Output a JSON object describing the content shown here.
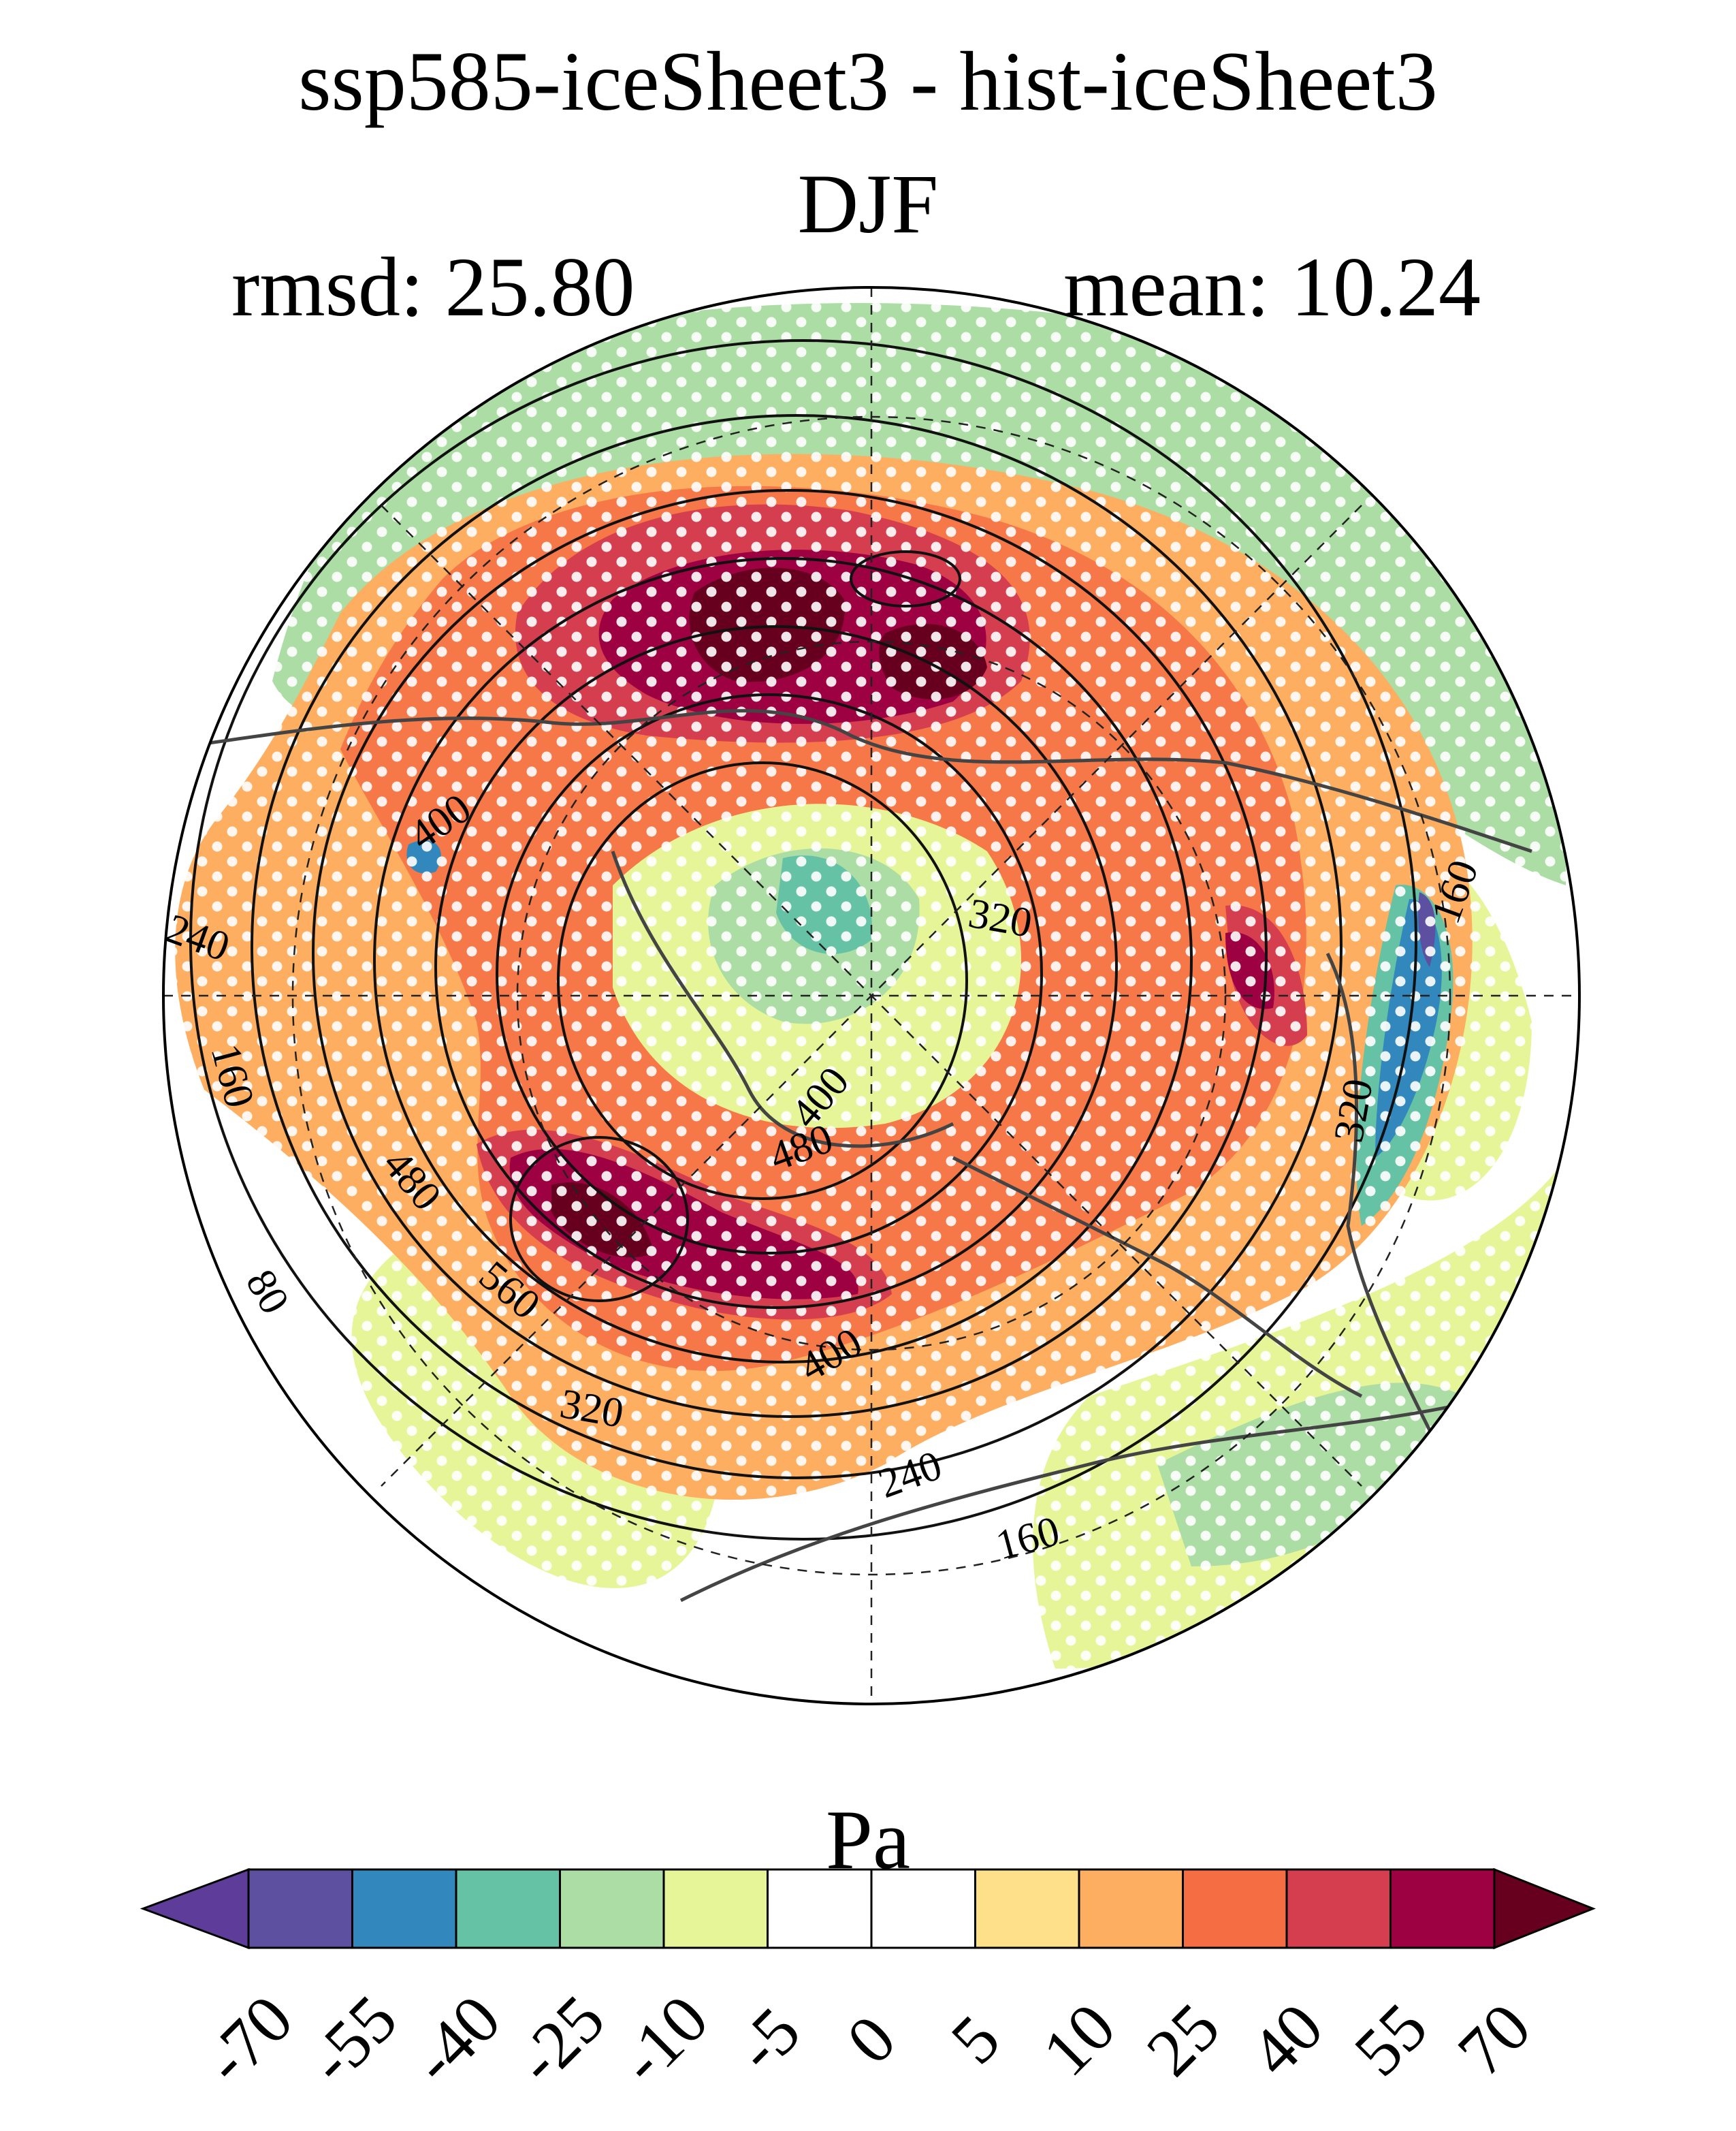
{
  "title": "ssp585-iceSheet3 - hist-iceSheet3",
  "season": "DJF",
  "rmsd_text": "rmsd: 25.80",
  "mean_text": "mean: 10.24",
  "units": "Pa",
  "colorbar": {
    "levels": [
      "-70",
      "-55",
      "-40",
      "-25",
      "-10",
      "-5",
      "0",
      "5",
      "10",
      "25",
      "40",
      "55",
      "70"
    ],
    "colors": [
      "#5e3c99",
      "#5e50a1",
      "#3288bd",
      "#66c2a5",
      "#abdda4",
      "#e6f598",
      "#ffffff",
      "#ffffff",
      "#fee08b",
      "#fdae61",
      "#f46d43",
      "#d53e4f",
      "#9e0142",
      "#67001f"
    ]
  },
  "contour_labels": [
    "400",
    "240",
    "160",
    "80",
    "480",
    "560",
    "320",
    "400",
    "240",
    "160",
    "320",
    "400",
    "480",
    "160",
    "320"
  ]
}
